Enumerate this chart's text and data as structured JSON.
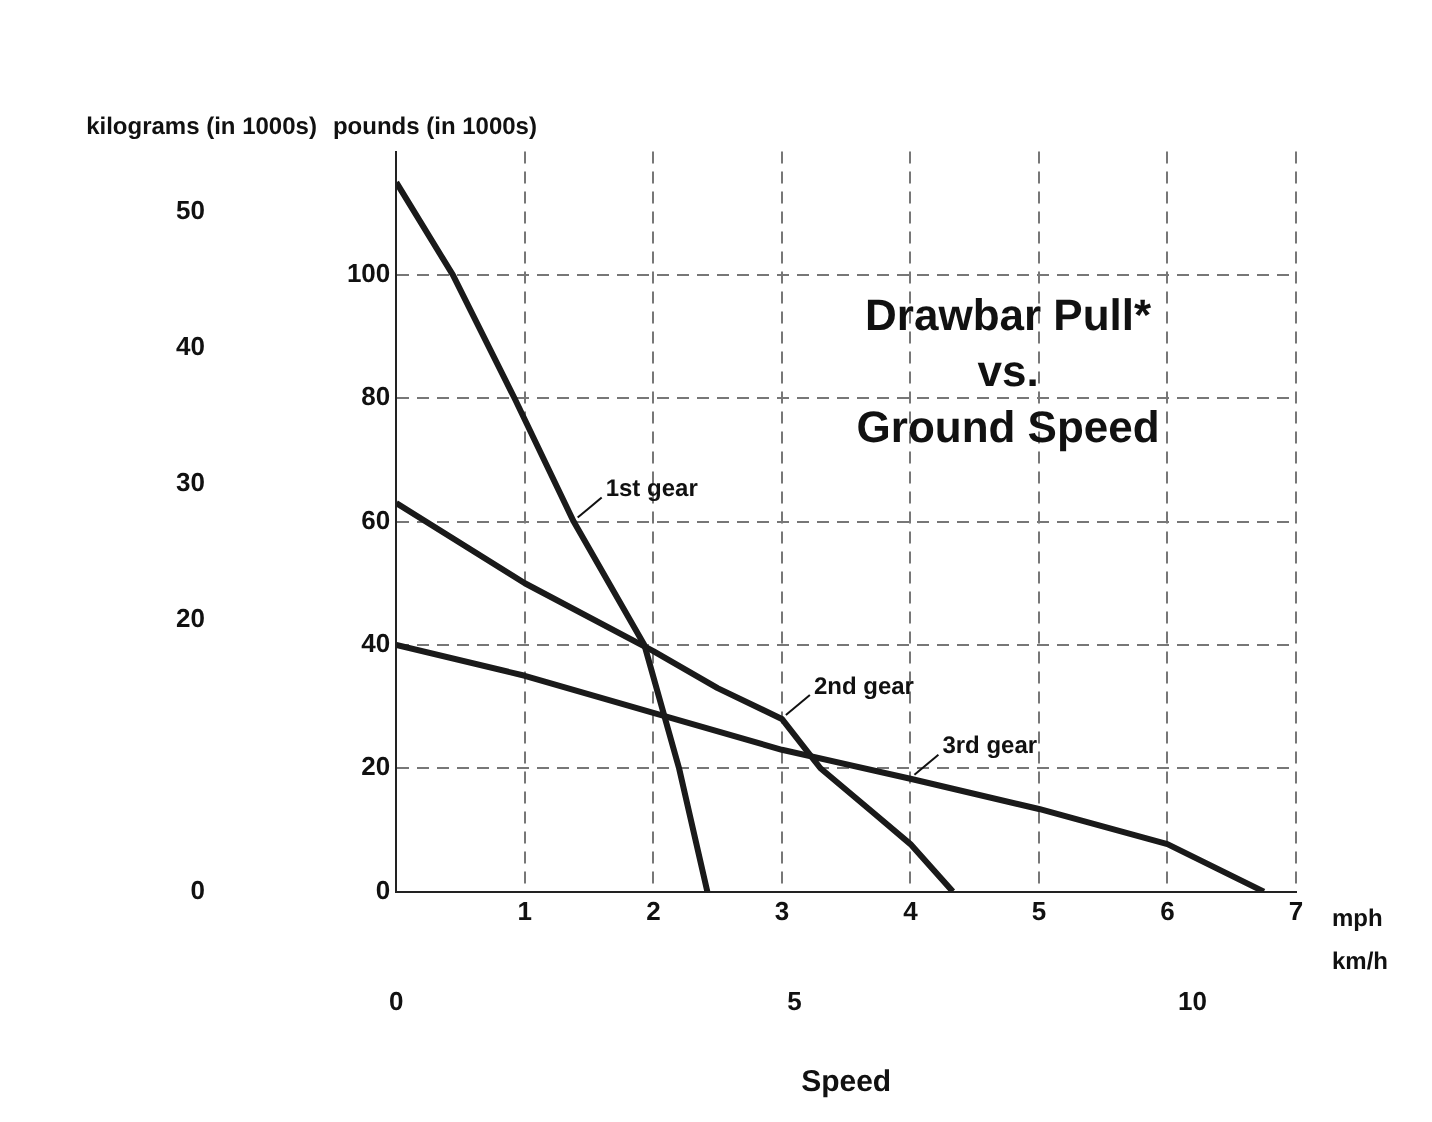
{
  "chart_data": {
    "type": "line",
    "title": "Drawbar Pull*\nvs.\nGround Speed",
    "xlabel": "mph",
    "x2label": "km/h",
    "ylabel": "pounds (in 1000s)",
    "y2label": "kilograms (in 1000s)",
    "annotations": [
      "Speed"
    ],
    "xlim": [
      0,
      7
    ],
    "xticks": [
      {
        "value": 0,
        "label": null
      },
      1,
      2,
      3,
      4,
      5,
      6,
      7
    ],
    "x2lim": [
      0,
      11.3
    ],
    "x2ticks": [
      0,
      5,
      10
    ],
    "ylim": [
      0,
      120
    ],
    "yticks": [
      0,
      20,
      40,
      60,
      80,
      100
    ],
    "y2lim": [
      0,
      54.4
    ],
    "y2ticks": [
      0,
      20,
      30,
      40,
      50
    ],
    "grid": true,
    "legend": false,
    "marker": "none",
    "line_style": "solid",
    "series": [
      {
        "name": "1st gear",
        "color": "#1a1a1a",
        "x": [
          0,
          0.44,
          0.92,
          1.38,
          1.93,
          2.2,
          2.42
        ],
        "values": [
          115,
          100,
          80,
          60,
          40,
          20,
          0
        ]
      },
      {
        "name": "2nd gear",
        "color": "#1a1a1a",
        "x": [
          0,
          1,
          2,
          2.5,
          3,
          3.3,
          3.7,
          4,
          4.33
        ],
        "values": [
          63,
          50,
          39,
          33,
          28,
          20,
          13,
          7.7,
          0
        ]
      },
      {
        "name": "3rd gear",
        "color": "#1a1a1a",
        "x": [
          0,
          1,
          2,
          3,
          4,
          5,
          6,
          6.75
        ],
        "values": [
          40,
          35,
          29,
          23,
          18.3,
          13.4,
          7.7,
          0
        ]
      }
    ]
  }
}
